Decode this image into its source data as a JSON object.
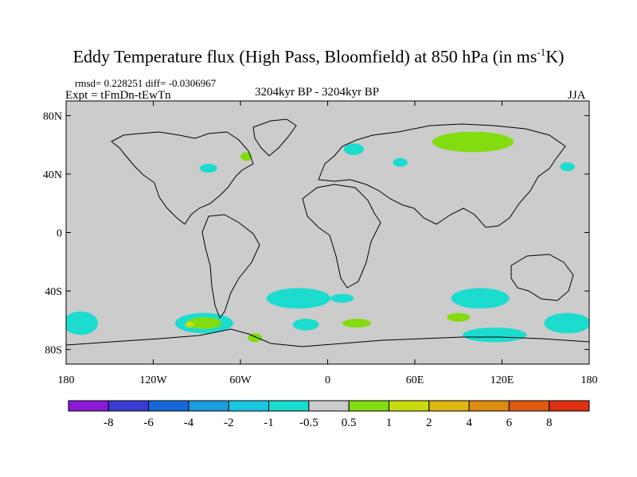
{
  "title_main": "Eddy Temperature flux (High Pass, Bloomfield) at 850 hPa (in ms",
  "title_sup": "-1",
  "title_end": "K)",
  "stats": "rmsd= 0.228251  diff= -0.0306967",
  "expt": "Expt = tFmDn-tEwTn",
  "period": "3204kyr BP - 3204kyr BP",
  "season": "JJA",
  "lon_ticks": [
    "180",
    "120W",
    "60W",
    "0",
    "60E",
    "120E",
    "180"
  ],
  "lat_ticks": [
    "80N",
    "40N",
    "0",
    "40S",
    "80S"
  ],
  "colorbar": {
    "colors": [
      "#8a1ad8",
      "#3a3ad6",
      "#1668d8",
      "#1a9ee0",
      "#18c8e0",
      "#1cdcd0",
      "#cccccc",
      "#82dc10",
      "#c8dc10",
      "#dcb810",
      "#dc8c10",
      "#dc5a10",
      "#dc3010"
    ],
    "labels": [
      "-8",
      "-6",
      "-4",
      "-2",
      "-1",
      "-0.5",
      "0.5",
      "1",
      "2",
      "4",
      "6",
      "8"
    ]
  },
  "chart_data": {
    "type": "contour-map",
    "variable": "Eddy Temperature flux (High Pass, Bloomfield) at 850 hPa",
    "units": "ms-1K",
    "projection": "cylindrical equidistant",
    "lon_range": [
      -180,
      180
    ],
    "lat_range": [
      -90,
      90
    ],
    "levels": [
      -8,
      -6,
      -4,
      -2,
      -1,
      -0.5,
      0.5,
      1,
      2,
      4,
      6,
      8
    ],
    "rmsd": 0.228251,
    "diff": -0.0306967,
    "anomaly_patches": [
      {
        "lon": 100,
        "lat": 62,
        "rlon": 28,
        "rlat": 7,
        "band": "0.5 to 1"
      },
      {
        "lon": 18,
        "lat": 57,
        "rlon": 7,
        "rlat": 4,
        "band": "-1 to -0.5"
      },
      {
        "lon": -56,
        "lat": 52,
        "rlon": 4,
        "rlat": 3,
        "band": "0.5 to 1"
      },
      {
        "lon": -82,
        "lat": 44,
        "rlon": 6,
        "rlat": 3,
        "band": "-1 to -0.5"
      },
      {
        "lon": 50,
        "lat": 48,
        "rlon": 5,
        "rlat": 3,
        "band": "-1 to -0.5"
      },
      {
        "lon": 165,
        "lat": 45,
        "rlon": 5,
        "rlat": 3,
        "band": "-1 to -0.5"
      },
      {
        "lon": -20,
        "lat": -45,
        "rlon": 22,
        "rlat": 7,
        "band": "-1 to -0.5"
      },
      {
        "lon": 105,
        "lat": -45,
        "rlon": 20,
        "rlat": 7,
        "band": "-1 to -0.5"
      },
      {
        "lon": 10,
        "lat": -45,
        "rlon": 8,
        "rlat": 3,
        "band": "-1 to -0.5"
      },
      {
        "lon": -170,
        "lat": -62,
        "rlon": 12,
        "rlat": 8,
        "band": "-1 to -0.5"
      },
      {
        "lon": -85,
        "lat": -62,
        "rlon": 20,
        "rlat": 7,
        "band": "-1 to -0.5"
      },
      {
        "lon": -85,
        "lat": -62,
        "rlon": 12,
        "rlat": 4,
        "band": "0.5 to 1"
      },
      {
        "lon": -95,
        "lat": -63,
        "rlon": 3,
        "rlat": 2,
        "band": "1 to 2"
      },
      {
        "lon": -15,
        "lat": -63,
        "rlon": 9,
        "rlat": 4,
        "band": "-1 to -0.5"
      },
      {
        "lon": 20,
        "lat": -62,
        "rlon": 10,
        "rlat": 3,
        "band": "0.5 to 1"
      },
      {
        "lon": 90,
        "lat": -58,
        "rlon": 8,
        "rlat": 3,
        "band": "0.5 to 1"
      },
      {
        "lon": 165,
        "lat": -62,
        "rlon": 16,
        "rlat": 7,
        "band": "-1 to -0.5"
      },
      {
        "lon": 115,
        "lat": -70,
        "rlon": 22,
        "rlat": 5,
        "band": "-1 to -0.5"
      },
      {
        "lon": -50,
        "lat": -72,
        "rlon": 5,
        "rlat": 3,
        "band": "0.5 to 1"
      }
    ]
  }
}
